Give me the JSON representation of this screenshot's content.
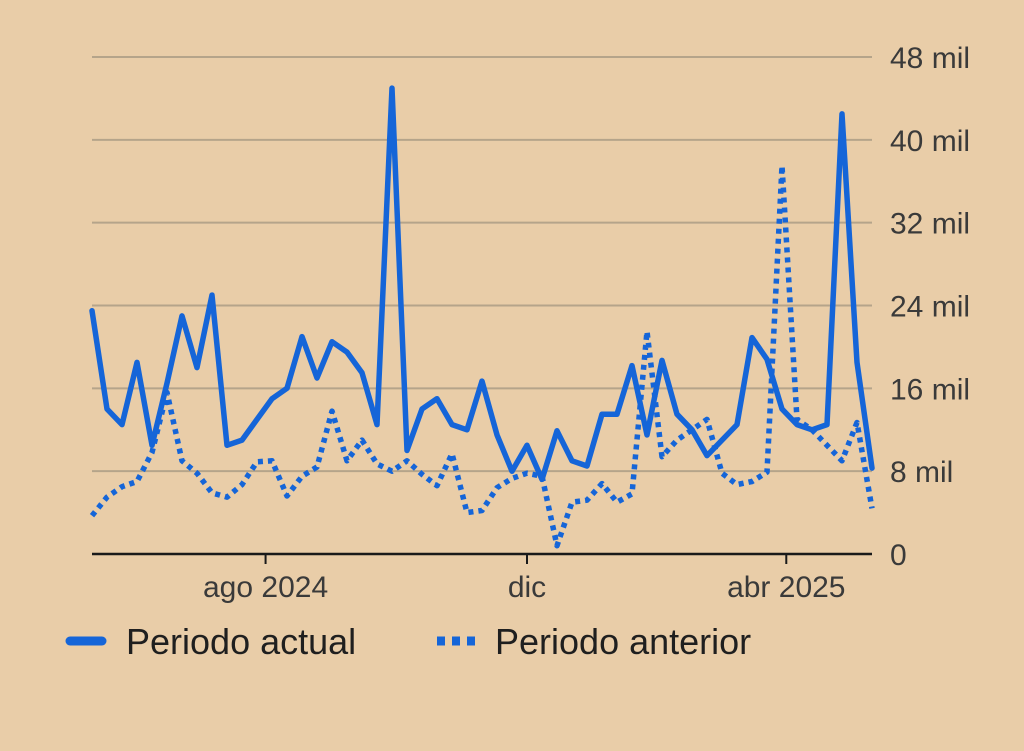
{
  "chart_data": {
    "type": "line",
    "title": "",
    "xlabel": "",
    "ylabel": "",
    "ylim": [
      0,
      48000
    ],
    "yticks": [
      {
        "value": 0,
        "label": "0"
      },
      {
        "value": 8000,
        "label": "8 mil"
      },
      {
        "value": 16000,
        "label": "16 mil"
      },
      {
        "value": 24000,
        "label": "24 mil"
      },
      {
        "value": 32000,
        "label": "32 mil"
      },
      {
        "value": 40000,
        "label": "40 mil"
      },
      {
        "value": 48000,
        "label": "48 mil"
      }
    ],
    "xrange": [
      "2024-05-12",
      "2025-05-11"
    ],
    "xticks": [
      {
        "value": "2024-08-01",
        "label": "ago 2024"
      },
      {
        "value": "2024-12-01",
        "label": "dic"
      },
      {
        "value": "2025-04-01",
        "label": "abr 2025"
      }
    ],
    "grid": true,
    "legend_position": "bottom-left",
    "series": [
      {
        "name": "Periodo actual",
        "style": "solid",
        "color": "#1565d8",
        "x": [
          "2024-05-12",
          "2024-05-19",
          "2024-05-26",
          "2024-06-02",
          "2024-06-09",
          "2024-06-16",
          "2024-06-23",
          "2024-06-30",
          "2024-07-07",
          "2024-07-14",
          "2024-07-21",
          "2024-07-28",
          "2024-08-04",
          "2024-08-11",
          "2024-08-18",
          "2024-08-25",
          "2024-09-01",
          "2024-09-08",
          "2024-09-15",
          "2024-09-22",
          "2024-09-29",
          "2024-10-06",
          "2024-10-13",
          "2024-10-20",
          "2024-10-27",
          "2024-11-03",
          "2024-11-10",
          "2024-11-17",
          "2024-11-24",
          "2024-12-01",
          "2024-12-08",
          "2024-12-15",
          "2024-12-22",
          "2024-12-29",
          "2025-01-05",
          "2025-01-12",
          "2025-01-19",
          "2025-01-26",
          "2025-02-02",
          "2025-02-09",
          "2025-02-16",
          "2025-02-23",
          "2025-03-02",
          "2025-03-09",
          "2025-03-16",
          "2025-03-23",
          "2025-03-30",
          "2025-04-06",
          "2025-04-13",
          "2025-04-20",
          "2025-04-27",
          "2025-05-04",
          "2025-05-11"
        ],
        "values": [
          23500,
          14000,
          12500,
          18500,
          10500,
          16500,
          23000,
          18000,
          25000,
          10500,
          11000,
          13000,
          15000,
          16000,
          21000,
          17000,
          20500,
          19500,
          17500,
          12500,
          45000,
          10000,
          14000,
          15000,
          12500,
          12000,
          16700,
          11500,
          8000,
          10500,
          7200,
          11900,
          9000,
          8500,
          13500,
          13500,
          18200,
          11500,
          18700,
          13500,
          12000,
          9500,
          11000,
          12500,
          20900,
          18800,
          14000,
          12500,
          12000,
          12500,
          42500,
          18500,
          8300
        ]
      },
      {
        "name": "Periodo anterior",
        "style": "dotted",
        "color": "#1565d8",
        "x": [
          "2024-05-12",
          "2024-05-19",
          "2024-05-26",
          "2024-06-02",
          "2024-06-09",
          "2024-06-16",
          "2024-06-23",
          "2024-06-30",
          "2024-07-07",
          "2024-07-14",
          "2024-07-21",
          "2024-07-28",
          "2024-08-04",
          "2024-08-11",
          "2024-08-18",
          "2024-08-25",
          "2024-09-01",
          "2024-09-08",
          "2024-09-15",
          "2024-09-22",
          "2024-09-29",
          "2024-10-06",
          "2024-10-13",
          "2024-10-20",
          "2024-10-27",
          "2024-11-03",
          "2024-11-10",
          "2024-11-17",
          "2024-11-24",
          "2024-12-01",
          "2024-12-08",
          "2024-12-15",
          "2024-12-22",
          "2024-12-29",
          "2025-01-05",
          "2025-01-12",
          "2025-01-19",
          "2025-01-26",
          "2025-02-02",
          "2025-02-09",
          "2025-02-16",
          "2025-02-23",
          "2025-03-02",
          "2025-03-09",
          "2025-03-16",
          "2025-03-23",
          "2025-03-30",
          "2025-04-06",
          "2025-04-13",
          "2025-04-20",
          "2025-04-27",
          "2025-05-04",
          "2025-05-11"
        ],
        "values": [
          3700,
          5500,
          6500,
          7000,
          9800,
          15600,
          9000,
          7800,
          5900,
          5500,
          6700,
          8900,
          9000,
          5600,
          7500,
          8400,
          13800,
          9000,
          11000,
          8700,
          8000,
          9000,
          7700,
          6600,
          9700,
          4000,
          4200,
          6400,
          7300,
          7800,
          7500,
          800,
          5000,
          5200,
          6800,
          5000,
          5800,
          21500,
          9400,
          11000,
          12000,
          13000,
          7800,
          6700,
          7000,
          7900,
          37500,
          13000,
          12000,
          10500,
          9000,
          12700,
          4400
        ]
      }
    ]
  }
}
